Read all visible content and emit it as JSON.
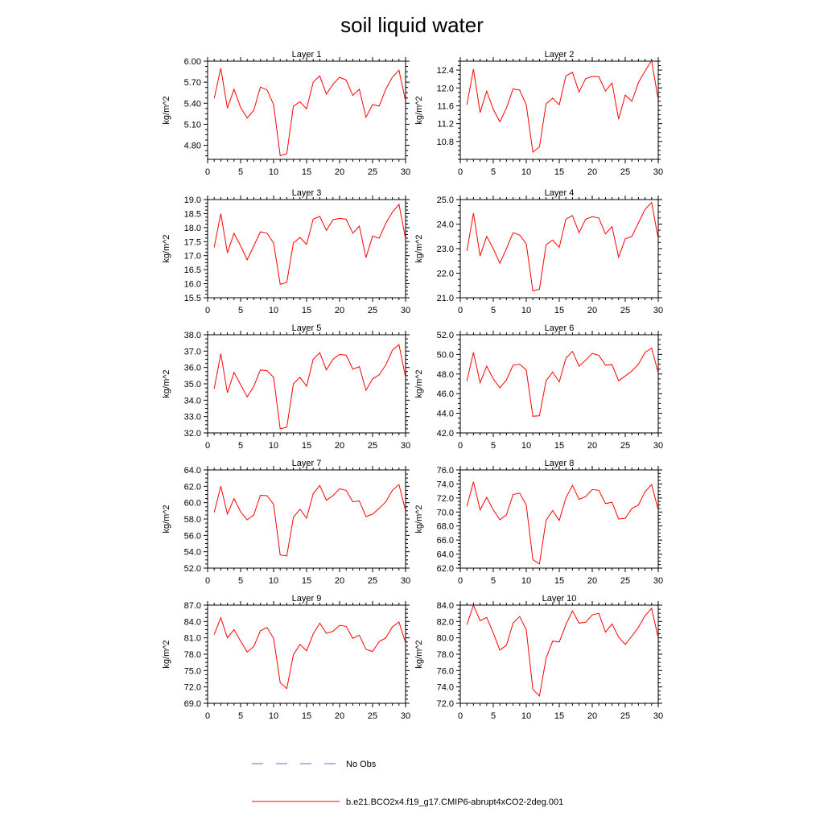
{
  "title": "soil liquid water",
  "colors": {
    "model_line": "#ff0000",
    "obs_line": "#6a6ad0",
    "axis": "#000000"
  },
  "legend": {
    "obs_label": "No Obs",
    "model_label": "b.e21.BCO2x4.f19_g17.CMIP6-abrupt4xCO2-2deg.001"
  },
  "chart_data": [
    {
      "type": "line",
      "title": "Layer 1",
      "ylabel": "kg/m^2",
      "xlim": [
        0,
        30
      ],
      "ylim": [
        4.6,
        6.0
      ],
      "yticks": [
        4.8,
        5.1,
        5.4,
        5.7,
        6.0
      ],
      "ytick_labels": [
        "4.80",
        "5.10",
        "5.40",
        "5.70",
        "6.00"
      ],
      "xticks": [
        0,
        5,
        10,
        15,
        20,
        25,
        30
      ],
      "series": [
        {
          "name": "b.e21.BCO2x4.f19_g17.CMIP6-abrupt4xCO2-2deg.001",
          "x": [
            1,
            2,
            3,
            4,
            5,
            6,
            7,
            8,
            9,
            10,
            11,
            12,
            13,
            14,
            15,
            16,
            17,
            18,
            19,
            20,
            21,
            22,
            23,
            24,
            25,
            26,
            27,
            28,
            29,
            30
          ],
          "values": [
            5.47,
            5.9,
            5.33,
            5.6,
            5.34,
            5.19,
            5.3,
            5.63,
            5.59,
            5.38,
            4.65,
            4.68,
            5.36,
            5.42,
            5.32,
            5.7,
            5.79,
            5.53,
            5.67,
            5.77,
            5.73,
            5.51,
            5.6,
            5.2,
            5.38,
            5.36,
            5.6,
            5.77,
            5.87,
            5.43
          ]
        }
      ]
    },
    {
      "type": "line",
      "title": "Layer 2",
      "ylabel": "kg/m^2",
      "xlim": [
        0,
        30
      ],
      "ylim": [
        10.4,
        12.6
      ],
      "yticks": [
        10.8,
        11.2,
        11.6,
        12.0,
        12.4
      ],
      "ytick_labels": [
        "10.8",
        "11.2",
        "11.6",
        "12.0",
        "12.4"
      ],
      "xticks": [
        0,
        5,
        10,
        15,
        20,
        25,
        30
      ],
      "series": [
        {
          "name": "b.e21.BCO2x4.f19_g17.CMIP6-abrupt4xCO2-2deg.001",
          "x": [
            1,
            2,
            3,
            4,
            5,
            6,
            7,
            8,
            9,
            10,
            11,
            12,
            13,
            14,
            15,
            16,
            17,
            18,
            19,
            20,
            21,
            22,
            23,
            24,
            25,
            26,
            27,
            28,
            29,
            30
          ],
          "values": [
            11.62,
            12.42,
            11.45,
            11.93,
            11.52,
            11.24,
            11.55,
            11.98,
            11.95,
            11.62,
            10.56,
            10.68,
            11.64,
            11.77,
            11.62,
            12.27,
            12.35,
            11.91,
            12.21,
            12.26,
            12.25,
            11.93,
            12.11,
            11.3,
            11.84,
            11.7,
            12.12,
            12.38,
            12.61,
            11.73
          ]
        }
      ]
    },
    {
      "type": "line",
      "title": "Layer 3",
      "ylabel": "kg/m^2",
      "xlim": [
        0,
        30
      ],
      "ylim": [
        15.5,
        19.0
      ],
      "yticks": [
        15.5,
        16.0,
        16.5,
        17.0,
        17.5,
        18.0,
        18.5,
        19.0
      ],
      "ytick_labels": [
        "15.5",
        "16.0",
        "16.5",
        "17.0",
        "17.5",
        "18.0",
        "18.5",
        "19.0"
      ],
      "xticks": [
        0,
        5,
        10,
        15,
        20,
        25,
        30
      ],
      "series": [
        {
          "name": "b.e21.BCO2x4.f19_g17.CMIP6-abrupt4xCO2-2deg.001",
          "x": [
            1,
            2,
            3,
            4,
            5,
            6,
            7,
            8,
            9,
            10,
            11,
            12,
            13,
            14,
            15,
            16,
            17,
            18,
            19,
            20,
            21,
            22,
            23,
            24,
            25,
            26,
            27,
            28,
            29,
            30
          ],
          "values": [
            17.3,
            18.5,
            17.1,
            17.8,
            17.35,
            16.85,
            17.35,
            17.85,
            17.8,
            17.45,
            15.98,
            16.05,
            17.45,
            17.65,
            17.4,
            18.3,
            18.4,
            17.9,
            18.28,
            18.33,
            18.3,
            17.8,
            18.05,
            16.93,
            17.7,
            17.62,
            18.15,
            18.55,
            18.83,
            17.6
          ]
        }
      ]
    },
    {
      "type": "line",
      "title": "Layer 4",
      "ylabel": "kg/m^2",
      "xlim": [
        0,
        30
      ],
      "ylim": [
        21.0,
        25.0
      ],
      "yticks": [
        21.0,
        22.0,
        23.0,
        24.0,
        25.0
      ],
      "ytick_labels": [
        "21.0",
        "22.0",
        "23.0",
        "24.0",
        "25.0"
      ],
      "xticks": [
        0,
        5,
        10,
        15,
        20,
        25,
        30
      ],
      "series": [
        {
          "name": "b.e21.BCO2x4.f19_g17.CMIP6-abrupt4xCO2-2deg.001",
          "x": [
            1,
            2,
            3,
            4,
            5,
            6,
            7,
            8,
            9,
            10,
            11,
            12,
            13,
            14,
            15,
            16,
            17,
            18,
            19,
            20,
            21,
            22,
            23,
            24,
            25,
            26,
            27,
            28,
            29,
            30
          ],
          "values": [
            22.9,
            24.45,
            22.7,
            23.5,
            23.0,
            22.4,
            23.0,
            23.65,
            23.55,
            23.2,
            21.28,
            21.35,
            23.15,
            23.35,
            23.05,
            24.2,
            24.35,
            23.65,
            24.2,
            24.3,
            24.25,
            23.6,
            23.9,
            22.65,
            23.4,
            23.5,
            24.05,
            24.6,
            24.88,
            23.4
          ]
        }
      ]
    },
    {
      "type": "line",
      "title": "Layer 5",
      "ylabel": "kg/m^2",
      "xlim": [
        0,
        30
      ],
      "ylim": [
        32.0,
        38.0
      ],
      "yticks": [
        32.0,
        33.0,
        34.0,
        35.0,
        36.0,
        37.0,
        38.0
      ],
      "ytick_labels": [
        "32.0",
        "33.0",
        "34.0",
        "35.0",
        "36.0",
        "37.0",
        "38.0"
      ],
      "xticks": [
        0,
        5,
        10,
        15,
        20,
        25,
        30
      ],
      "series": [
        {
          "name": "b.e21.BCO2x4.f19_g17.CMIP6-abrupt4xCO2-2deg.001",
          "x": [
            1,
            2,
            3,
            4,
            5,
            6,
            7,
            8,
            9,
            10,
            11,
            12,
            13,
            14,
            15,
            16,
            17,
            18,
            19,
            20,
            21,
            22,
            23,
            24,
            25,
            26,
            27,
            28,
            29,
            30
          ],
          "values": [
            34.7,
            36.85,
            34.45,
            35.7,
            34.95,
            34.2,
            34.85,
            35.85,
            35.8,
            35.4,
            32.25,
            32.35,
            35.0,
            35.4,
            34.85,
            36.5,
            36.9,
            35.85,
            36.5,
            36.8,
            36.75,
            35.9,
            36.05,
            34.6,
            35.3,
            35.55,
            36.15,
            37.05,
            37.4,
            35.4
          ]
        }
      ]
    },
    {
      "type": "line",
      "title": "Layer 6",
      "ylabel": "kg/m^2",
      "xlim": [
        0,
        30
      ],
      "ylim": [
        42.0,
        52.0
      ],
      "yticks": [
        42.0,
        44.0,
        46.0,
        48.0,
        50.0,
        52.0
      ],
      "ytick_labels": [
        "42.0",
        "44.0",
        "46.0",
        "48.0",
        "50.0",
        "52.0"
      ],
      "xticks": [
        0,
        5,
        10,
        15,
        20,
        25,
        30
      ],
      "series": [
        {
          "name": "b.e21.BCO2x4.f19_g17.CMIP6-abrupt4xCO2-2deg.001",
          "x": [
            1,
            2,
            3,
            4,
            5,
            6,
            7,
            8,
            9,
            10,
            11,
            12,
            13,
            14,
            15,
            16,
            17,
            18,
            19,
            20,
            21,
            22,
            23,
            24,
            25,
            26,
            27,
            28,
            29,
            30
          ],
          "values": [
            47.3,
            50.2,
            47.1,
            48.8,
            47.5,
            46.6,
            47.4,
            48.9,
            49.0,
            48.4,
            43.7,
            43.75,
            47.3,
            48.2,
            47.2,
            49.6,
            50.3,
            48.8,
            49.4,
            50.1,
            49.9,
            48.9,
            48.95,
            47.3,
            47.8,
            48.3,
            49.0,
            50.2,
            50.65,
            48.1
          ]
        }
      ]
    },
    {
      "type": "line",
      "title": "Layer 7",
      "ylabel": "kg/m^2",
      "xlim": [
        0,
        30
      ],
      "ylim": [
        52.0,
        64.0
      ],
      "yticks": [
        52.0,
        54.0,
        56.0,
        58.0,
        60.0,
        62.0,
        64.0
      ],
      "ytick_labels": [
        "52.0",
        "54.0",
        "56.0",
        "58.0",
        "60.0",
        "62.0",
        "64.0"
      ],
      "xticks": [
        0,
        5,
        10,
        15,
        20,
        25,
        30
      ],
      "series": [
        {
          "name": "b.e21.BCO2x4.f19_g17.CMIP6-abrupt4xCO2-2deg.001",
          "x": [
            1,
            2,
            3,
            4,
            5,
            6,
            7,
            8,
            9,
            10,
            11,
            12,
            13,
            14,
            15,
            16,
            17,
            18,
            19,
            20,
            21,
            22,
            23,
            24,
            25,
            26,
            27,
            28,
            29,
            30
          ],
          "values": [
            58.8,
            62.0,
            58.6,
            60.5,
            58.9,
            57.9,
            58.5,
            60.9,
            60.85,
            59.8,
            53.6,
            53.5,
            58.2,
            59.2,
            58.1,
            61.1,
            62.1,
            60.3,
            60.85,
            61.7,
            61.5,
            60.1,
            60.2,
            58.3,
            58.6,
            59.3,
            60.1,
            61.5,
            62.2,
            59.0
          ]
        }
      ]
    },
    {
      "type": "line",
      "title": "Layer 8",
      "ylabel": "kg/m^2",
      "xlim": [
        0,
        30
      ],
      "ylim": [
        62.0,
        76.0
      ],
      "yticks": [
        62.0,
        64.0,
        66.0,
        68.0,
        70.0,
        72.0,
        74.0,
        76.0
      ],
      "ytick_labels": [
        "62.0",
        "64.0",
        "66.0",
        "68.0",
        "70.0",
        "72.0",
        "74.0",
        "76.0"
      ],
      "xticks": [
        0,
        5,
        10,
        15,
        20,
        25,
        30
      ],
      "series": [
        {
          "name": "b.e21.BCO2x4.f19_g17.CMIP6-abrupt4xCO2-2deg.001",
          "x": [
            1,
            2,
            3,
            4,
            5,
            6,
            7,
            8,
            9,
            10,
            11,
            12,
            13,
            14,
            15,
            16,
            17,
            18,
            19,
            20,
            21,
            22,
            23,
            24,
            25,
            26,
            27,
            28,
            29,
            30
          ],
          "values": [
            70.8,
            74.3,
            70.3,
            72.1,
            70.3,
            68.9,
            69.6,
            72.5,
            72.7,
            71.0,
            63.2,
            62.6,
            68.8,
            70.2,
            68.8,
            72.0,
            73.8,
            71.8,
            72.2,
            73.2,
            73.1,
            71.2,
            71.4,
            69.0,
            69.1,
            70.5,
            71.0,
            72.9,
            73.9,
            70.3
          ]
        }
      ]
    },
    {
      "type": "line",
      "title": "Layer 9",
      "ylabel": "kg/m^2",
      "xlim": [
        0,
        30
      ],
      "ylim": [
        69.0,
        87.0
      ],
      "yticks": [
        69.0,
        72.0,
        75.0,
        78.0,
        81.0,
        84.0,
        87.0
      ],
      "ytick_labels": [
        "69.0",
        "72.0",
        "75.0",
        "78.0",
        "81.0",
        "84.0",
        "87.0"
      ],
      "xticks": [
        0,
        5,
        10,
        15,
        20,
        25,
        30
      ],
      "series": [
        {
          "name": "b.e21.BCO2x4.f19_g17.CMIP6-abrupt4xCO2-2deg.001",
          "x": [
            1,
            2,
            3,
            4,
            5,
            6,
            7,
            8,
            9,
            10,
            11,
            12,
            13,
            14,
            15,
            16,
            17,
            18,
            19,
            20,
            21,
            22,
            23,
            24,
            25,
            26,
            27,
            28,
            29,
            30
          ],
          "values": [
            81.6,
            84.7,
            81.0,
            82.5,
            80.4,
            78.4,
            79.4,
            82.3,
            82.9,
            80.9,
            72.8,
            71.7,
            77.9,
            79.8,
            78.6,
            81.7,
            83.7,
            81.8,
            82.2,
            83.3,
            83.1,
            80.9,
            81.5,
            78.9,
            78.5,
            80.3,
            81.0,
            83.0,
            83.9,
            80.1
          ]
        }
      ]
    },
    {
      "type": "line",
      "title": "Layer 10",
      "ylabel": "kg/m^2",
      "xlim": [
        0,
        30
      ],
      "ylim": [
        72.0,
        84.0
      ],
      "yticks": [
        72.0,
        74.0,
        76.0,
        78.0,
        80.0,
        82.0,
        84.0
      ],
      "ytick_labels": [
        "72.0",
        "74.0",
        "76.0",
        "78.0",
        "80.0",
        "82.0",
        "84.0"
      ],
      "xticks": [
        0,
        5,
        10,
        15,
        20,
        25,
        30
      ],
      "series": [
        {
          "name": "b.e21.BCO2x4.f19_g17.CMIP6-abrupt4xCO2-2deg.001",
          "x": [
            1,
            2,
            3,
            4,
            5,
            6,
            7,
            8,
            9,
            10,
            11,
            12,
            13,
            14,
            15,
            16,
            17,
            18,
            19,
            20,
            21,
            22,
            23,
            24,
            25,
            26,
            27,
            28,
            29,
            30
          ],
          "values": [
            81.6,
            84.0,
            82.1,
            82.5,
            80.6,
            78.5,
            79.1,
            81.8,
            82.6,
            81.0,
            73.7,
            72.9,
            77.5,
            79.6,
            79.5,
            81.6,
            83.3,
            81.8,
            81.9,
            82.8,
            83.0,
            80.7,
            81.7,
            80.1,
            79.2,
            80.2,
            81.3,
            82.7,
            83.6,
            80.0
          ]
        }
      ]
    }
  ]
}
